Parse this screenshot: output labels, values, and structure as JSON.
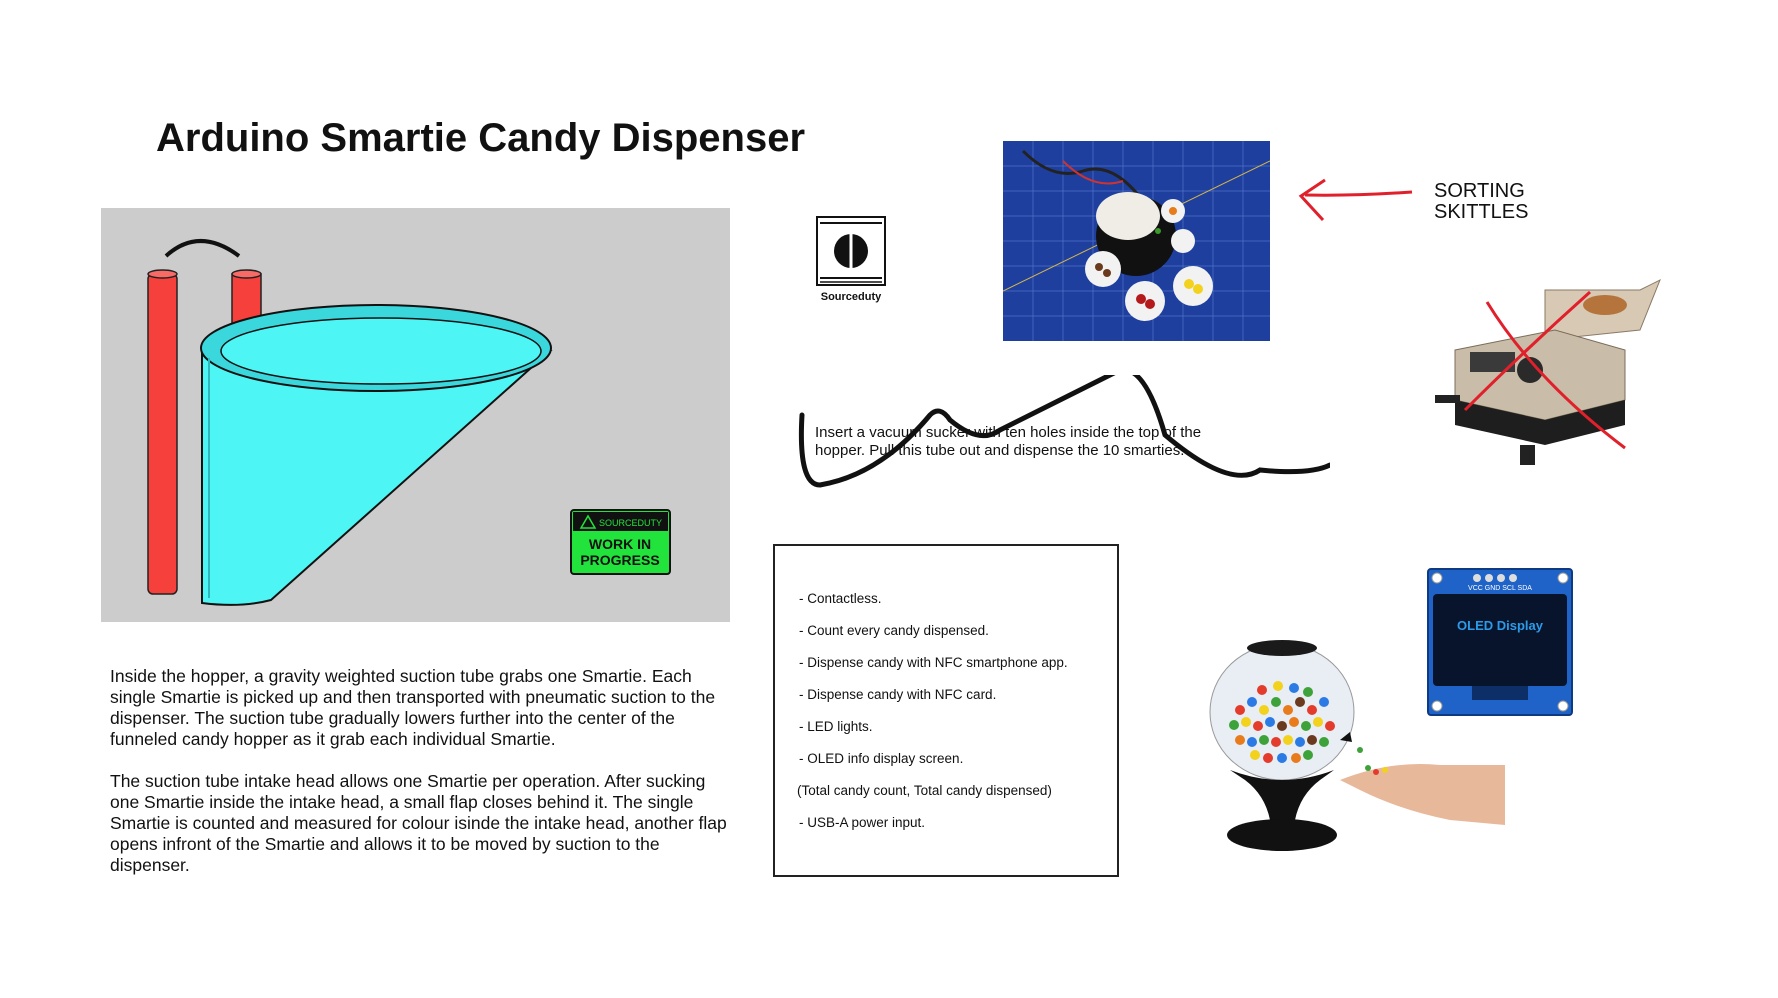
{
  "title": "Arduino Smartie Candy Dispenser",
  "badge": {
    "brand": "SOURCEDUTY",
    "line1": "WORK IN",
    "line2": "PROGRESS"
  },
  "description": [
    "Inside the hopper, a gravity weighted suction tube grabs one Smartie. Each single Smartie is picked up and then transported with pneumatic suction to the dispenser. The suction tube gradually lowers further into the center of the funneled candy hopper as it grab each individual Smartie.",
    "The suction tube intake head allows one Smartie per operation. After sucking one Smartie inside the intake head, a small flap closes behind it. The single Smartie is counted and measured for colour isinde the intake head, another flap opens infront of the Smartie and allows it to be moved by suction to the dispenser."
  ],
  "logo_label": "Sourceduty",
  "sorting_label": [
    "SORTING",
    "SKITTLES"
  ],
  "sucker_note": "Insert a vacuum sucker with ten holes inside the top of the hopper. Pull this tube out and dispense the 10 smarties.",
  "features": [
    "- Contactless.",
    "- Count every candy dispensed.",
    "- Dispense candy with NFC smartphone app.",
    "- Dispense candy with NFC card.",
    "- LED lights.",
    "- OLED info display screen.",
    "(Total candy count, Total candy dispensed)",
    "- USB-A power input."
  ],
  "oled": {
    "label": "OLED Display",
    "pins": "VCC GND SCL SDA"
  },
  "colors": {
    "hopper": "#4ef5f5",
    "tube": "#f5403c",
    "badge": "#22e33c",
    "ink": "#e0202a",
    "oled_text": "#2b9be8"
  }
}
